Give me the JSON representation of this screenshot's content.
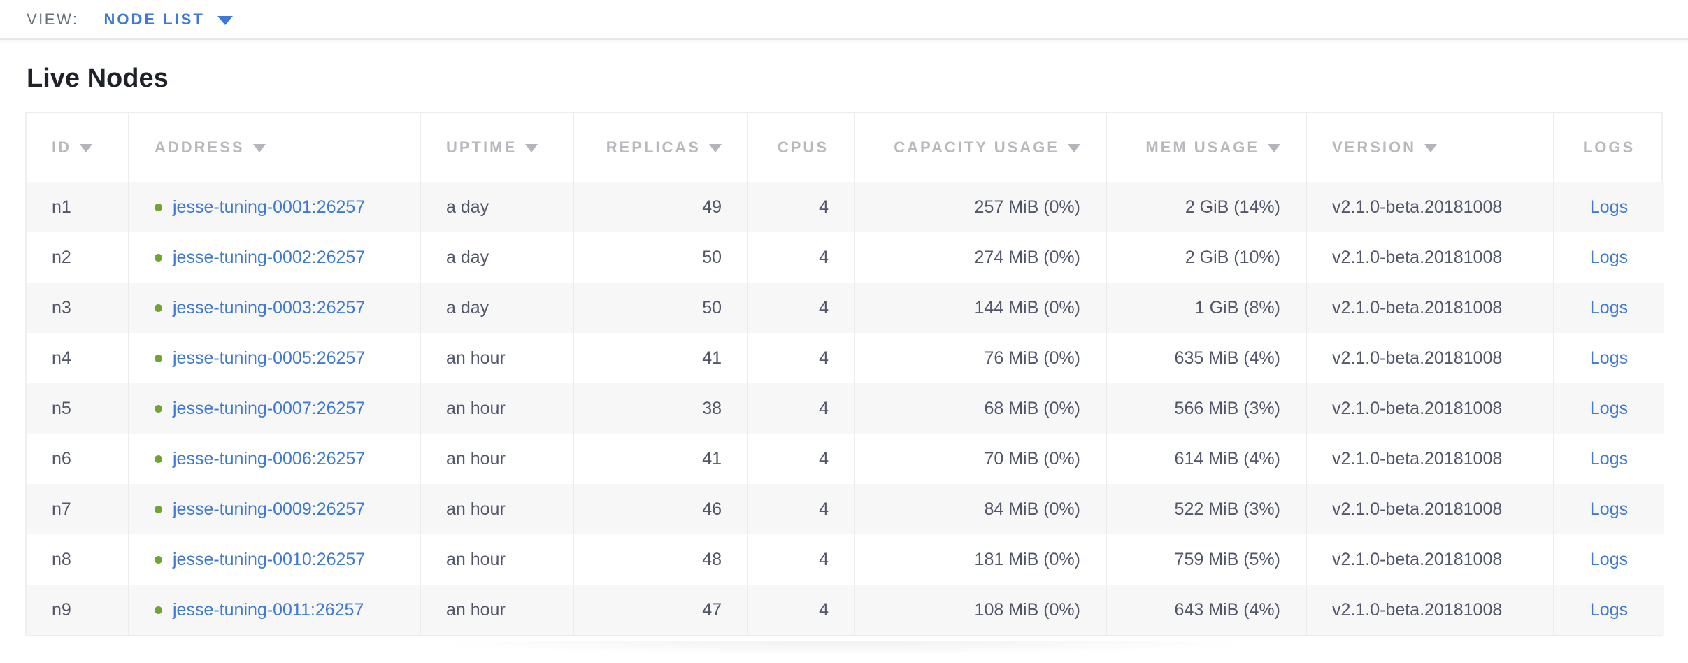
{
  "view_bar": {
    "label": "VIEW:",
    "selected": "NODE LIST",
    "caret_icon": "triangle-down"
  },
  "page": {
    "title": "Live Nodes"
  },
  "colors": {
    "link_blue": "#3e79d6",
    "healthy_dot_green": "#70a435",
    "header_text_gray": "#b7b9be",
    "cell_text": "#51566b",
    "alt_row_bg": "#f7f7f7",
    "divider": "#ececec"
  },
  "table": {
    "columns": [
      {
        "key": "id",
        "label": "ID",
        "sortable": true,
        "align": "left"
      },
      {
        "key": "address",
        "label": "ADDRESS",
        "sortable": true,
        "align": "left"
      },
      {
        "key": "uptime",
        "label": "UPTIME",
        "sortable": true,
        "align": "left"
      },
      {
        "key": "replicas",
        "label": "REPLICAS",
        "sortable": true,
        "align": "right"
      },
      {
        "key": "cpus",
        "label": "CPUS",
        "sortable": false,
        "align": "right"
      },
      {
        "key": "capacity",
        "label": "CAPACITY USAGE",
        "sortable": true,
        "align": "right"
      },
      {
        "key": "mem",
        "label": "MEM USAGE",
        "sortable": true,
        "align": "right"
      },
      {
        "key": "version",
        "label": "VERSION",
        "sortable": true,
        "align": "left"
      },
      {
        "key": "logs",
        "label": "LOGS",
        "sortable": false,
        "align": "center"
      }
    ],
    "rows": [
      {
        "id": "n1",
        "status": "healthy",
        "address": "jesse-tuning-0001:26257",
        "uptime": "a day",
        "replicas": "49",
        "cpus": "4",
        "capacity": "257 MiB (0%)",
        "mem": "2 GiB (14%)",
        "version": "v2.1.0-beta.20181008",
        "logs": "Logs"
      },
      {
        "id": "n2",
        "status": "healthy",
        "address": "jesse-tuning-0002:26257",
        "uptime": "a day",
        "replicas": "50",
        "cpus": "4",
        "capacity": "274 MiB (0%)",
        "mem": "2 GiB (10%)",
        "version": "v2.1.0-beta.20181008",
        "logs": "Logs"
      },
      {
        "id": "n3",
        "status": "healthy",
        "address": "jesse-tuning-0003:26257",
        "uptime": "a day",
        "replicas": "50",
        "cpus": "4",
        "capacity": "144 MiB (0%)",
        "mem": "1 GiB (8%)",
        "version": "v2.1.0-beta.20181008",
        "logs": "Logs"
      },
      {
        "id": "n4",
        "status": "healthy",
        "address": "jesse-tuning-0005:26257",
        "uptime": "an hour",
        "replicas": "41",
        "cpus": "4",
        "capacity": "76 MiB (0%)",
        "mem": "635 MiB (4%)",
        "version": "v2.1.0-beta.20181008",
        "logs": "Logs"
      },
      {
        "id": "n5",
        "status": "healthy",
        "address": "jesse-tuning-0007:26257",
        "uptime": "an hour",
        "replicas": "38",
        "cpus": "4",
        "capacity": "68 MiB (0%)",
        "mem": "566 MiB (3%)",
        "version": "v2.1.0-beta.20181008",
        "logs": "Logs"
      },
      {
        "id": "n6",
        "status": "healthy",
        "address": "jesse-tuning-0006:26257",
        "uptime": "an hour",
        "replicas": "41",
        "cpus": "4",
        "capacity": "70 MiB (0%)",
        "mem": "614 MiB (4%)",
        "version": "v2.1.0-beta.20181008",
        "logs": "Logs"
      },
      {
        "id": "n7",
        "status": "healthy",
        "address": "jesse-tuning-0009:26257",
        "uptime": "an hour",
        "replicas": "46",
        "cpus": "4",
        "capacity": "84 MiB (0%)",
        "mem": "522 MiB (3%)",
        "version": "v2.1.0-beta.20181008",
        "logs": "Logs"
      },
      {
        "id": "n8",
        "status": "healthy",
        "address": "jesse-tuning-0010:26257",
        "uptime": "an hour",
        "replicas": "48",
        "cpus": "4",
        "capacity": "181 MiB (0%)",
        "mem": "759 MiB (5%)",
        "version": "v2.1.0-beta.20181008",
        "logs": "Logs"
      },
      {
        "id": "n9",
        "status": "healthy",
        "address": "jesse-tuning-0011:26257",
        "uptime": "an hour",
        "replicas": "47",
        "cpus": "4",
        "capacity": "108 MiB (0%)",
        "mem": "643 MiB (4%)",
        "version": "v2.1.0-beta.20181008",
        "logs": "Logs"
      }
    ]
  }
}
